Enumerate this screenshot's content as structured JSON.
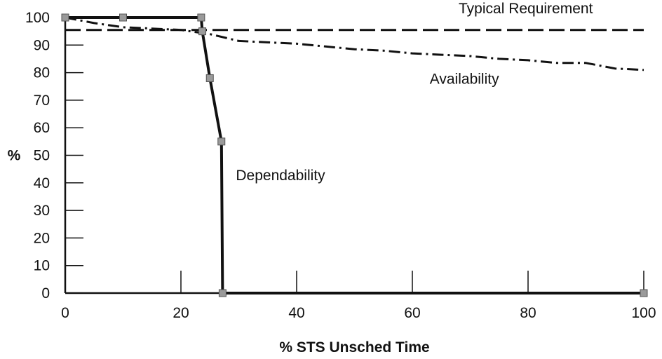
{
  "chart_data": {
    "type": "line",
    "xlabel": "% STS Unsched Time",
    "ylabel": "%",
    "xlim": [
      0,
      100
    ],
    "ylim": [
      0,
      100
    ],
    "x_ticks": [
      0,
      20,
      40,
      60,
      80,
      100
    ],
    "y_ticks": [
      0,
      10,
      20,
      30,
      40,
      50,
      60,
      70,
      80,
      90,
      100
    ],
    "grid": false,
    "legend": "none",
    "series": [
      {
        "name": "Typical Requirement",
        "style": "dashed",
        "color": "#111111",
        "points": [
          [
            0,
            95.5
          ],
          [
            20,
            95.5
          ],
          [
            40,
            95.5
          ],
          [
            60,
            95.5
          ],
          [
            80,
            95.5
          ],
          [
            100,
            95.5
          ]
        ]
      },
      {
        "name": "Availability",
        "style": "dash-dot",
        "color": "#111111",
        "points": [
          [
            0,
            100
          ],
          [
            5,
            98
          ],
          [
            10,
            96.5
          ],
          [
            20,
            95.5
          ],
          [
            25,
            94
          ],
          [
            30,
            91.5
          ],
          [
            35,
            91
          ],
          [
            40,
            90.5
          ],
          [
            45,
            89.5
          ],
          [
            50,
            88.5
          ],
          [
            55,
            88
          ],
          [
            60,
            87
          ],
          [
            65,
            86.5
          ],
          [
            70,
            86
          ],
          [
            75,
            85
          ],
          [
            80,
            84.5
          ],
          [
            85,
            83.5
          ],
          [
            90,
            83.5
          ],
          [
            95,
            81.5
          ],
          [
            100,
            81
          ]
        ]
      },
      {
        "name": "Dependability",
        "style": "solid",
        "color": "#111111",
        "markers": true,
        "points": [
          [
            0,
            100
          ],
          [
            10,
            100
          ],
          [
            23.5,
            100
          ],
          [
            23.7,
            95
          ],
          [
            25,
            78
          ],
          [
            27,
            55
          ],
          [
            27.2,
            0
          ],
          [
            100,
            0
          ]
        ]
      }
    ],
    "annotations": [
      {
        "text": "Typical Requirement",
        "x": 68,
        "y": 101.5
      },
      {
        "text": "Availability",
        "x": 63,
        "y": 76
      },
      {
        "text": "Dependability",
        "x": 29.5,
        "y": 41
      }
    ]
  }
}
